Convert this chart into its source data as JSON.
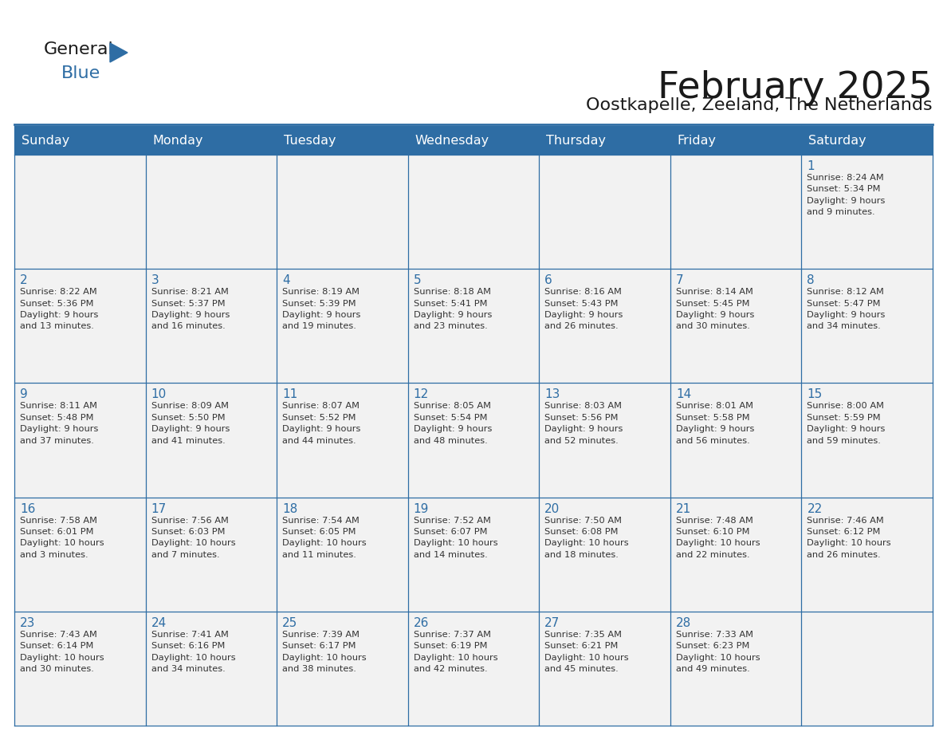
{
  "title": "February 2025",
  "subtitle": "Oostkapelle, Zeeland, The Netherlands",
  "header_bg": "#2E6DA4",
  "header_text": "#FFFFFF",
  "cell_bg": "#F2F2F2",
  "day_headers": [
    "Sunday",
    "Monday",
    "Tuesday",
    "Wednesday",
    "Thursday",
    "Friday",
    "Saturday"
  ],
  "title_color": "#1a1a1a",
  "subtitle_color": "#1a1a1a",
  "line_color": "#2E6DA4",
  "text_color": "#333333",
  "day_num_color": "#2E6DA4",
  "logo_general_color": "#1a1a1a",
  "logo_blue_color": "#2E6DA4",
  "weeks": [
    [
      {
        "day": "",
        "info": ""
      },
      {
        "day": "",
        "info": ""
      },
      {
        "day": "",
        "info": ""
      },
      {
        "day": "",
        "info": ""
      },
      {
        "day": "",
        "info": ""
      },
      {
        "day": "",
        "info": ""
      },
      {
        "day": "1",
        "info": "Sunrise: 8:24 AM\nSunset: 5:34 PM\nDaylight: 9 hours\nand 9 minutes."
      }
    ],
    [
      {
        "day": "2",
        "info": "Sunrise: 8:22 AM\nSunset: 5:36 PM\nDaylight: 9 hours\nand 13 minutes."
      },
      {
        "day": "3",
        "info": "Sunrise: 8:21 AM\nSunset: 5:37 PM\nDaylight: 9 hours\nand 16 minutes."
      },
      {
        "day": "4",
        "info": "Sunrise: 8:19 AM\nSunset: 5:39 PM\nDaylight: 9 hours\nand 19 minutes."
      },
      {
        "day": "5",
        "info": "Sunrise: 8:18 AM\nSunset: 5:41 PM\nDaylight: 9 hours\nand 23 minutes."
      },
      {
        "day": "6",
        "info": "Sunrise: 8:16 AM\nSunset: 5:43 PM\nDaylight: 9 hours\nand 26 minutes."
      },
      {
        "day": "7",
        "info": "Sunrise: 8:14 AM\nSunset: 5:45 PM\nDaylight: 9 hours\nand 30 minutes."
      },
      {
        "day": "8",
        "info": "Sunrise: 8:12 AM\nSunset: 5:47 PM\nDaylight: 9 hours\nand 34 minutes."
      }
    ],
    [
      {
        "day": "9",
        "info": "Sunrise: 8:11 AM\nSunset: 5:48 PM\nDaylight: 9 hours\nand 37 minutes."
      },
      {
        "day": "10",
        "info": "Sunrise: 8:09 AM\nSunset: 5:50 PM\nDaylight: 9 hours\nand 41 minutes."
      },
      {
        "day": "11",
        "info": "Sunrise: 8:07 AM\nSunset: 5:52 PM\nDaylight: 9 hours\nand 44 minutes."
      },
      {
        "day": "12",
        "info": "Sunrise: 8:05 AM\nSunset: 5:54 PM\nDaylight: 9 hours\nand 48 minutes."
      },
      {
        "day": "13",
        "info": "Sunrise: 8:03 AM\nSunset: 5:56 PM\nDaylight: 9 hours\nand 52 minutes."
      },
      {
        "day": "14",
        "info": "Sunrise: 8:01 AM\nSunset: 5:58 PM\nDaylight: 9 hours\nand 56 minutes."
      },
      {
        "day": "15",
        "info": "Sunrise: 8:00 AM\nSunset: 5:59 PM\nDaylight: 9 hours\nand 59 minutes."
      }
    ],
    [
      {
        "day": "16",
        "info": "Sunrise: 7:58 AM\nSunset: 6:01 PM\nDaylight: 10 hours\nand 3 minutes."
      },
      {
        "day": "17",
        "info": "Sunrise: 7:56 AM\nSunset: 6:03 PM\nDaylight: 10 hours\nand 7 minutes."
      },
      {
        "day": "18",
        "info": "Sunrise: 7:54 AM\nSunset: 6:05 PM\nDaylight: 10 hours\nand 11 minutes."
      },
      {
        "day": "19",
        "info": "Sunrise: 7:52 AM\nSunset: 6:07 PM\nDaylight: 10 hours\nand 14 minutes."
      },
      {
        "day": "20",
        "info": "Sunrise: 7:50 AM\nSunset: 6:08 PM\nDaylight: 10 hours\nand 18 minutes."
      },
      {
        "day": "21",
        "info": "Sunrise: 7:48 AM\nSunset: 6:10 PM\nDaylight: 10 hours\nand 22 minutes."
      },
      {
        "day": "22",
        "info": "Sunrise: 7:46 AM\nSunset: 6:12 PM\nDaylight: 10 hours\nand 26 minutes."
      }
    ],
    [
      {
        "day": "23",
        "info": "Sunrise: 7:43 AM\nSunset: 6:14 PM\nDaylight: 10 hours\nand 30 minutes."
      },
      {
        "day": "24",
        "info": "Sunrise: 7:41 AM\nSunset: 6:16 PM\nDaylight: 10 hours\nand 34 minutes."
      },
      {
        "day": "25",
        "info": "Sunrise: 7:39 AM\nSunset: 6:17 PM\nDaylight: 10 hours\nand 38 minutes."
      },
      {
        "day": "26",
        "info": "Sunrise: 7:37 AM\nSunset: 6:19 PM\nDaylight: 10 hours\nand 42 minutes."
      },
      {
        "day": "27",
        "info": "Sunrise: 7:35 AM\nSunset: 6:21 PM\nDaylight: 10 hours\nand 45 minutes."
      },
      {
        "day": "28",
        "info": "Sunrise: 7:33 AM\nSunset: 6:23 PM\nDaylight: 10 hours\nand 49 minutes."
      },
      {
        "day": "",
        "info": ""
      }
    ]
  ]
}
